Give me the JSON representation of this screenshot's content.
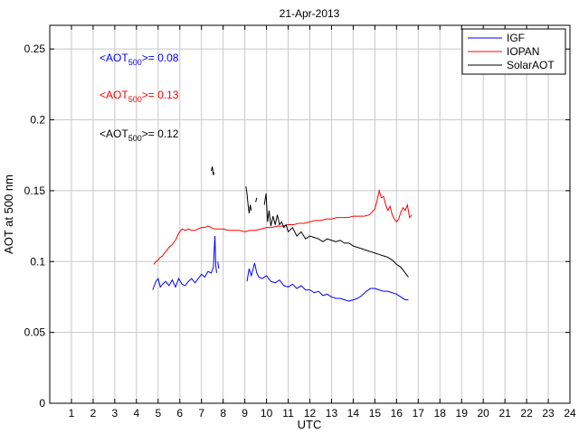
{
  "chart_data": {
    "type": "line",
    "title": "21-Apr-2013",
    "xlabel": "UTC",
    "ylabel": "AOT at 500 nm",
    "xlim": [
      0,
      24
    ],
    "ylim": [
      0,
      0.2667
    ],
    "xticks": [
      1,
      2,
      3,
      4,
      5,
      6,
      7,
      8,
      9,
      10,
      11,
      12,
      13,
      14,
      15,
      16,
      17,
      18,
      19,
      20,
      21,
      22,
      23,
      24
    ],
    "yticks": [
      0,
      0.05,
      0.1,
      0.15,
      0.2,
      0.25
    ],
    "ytick_labels": [
      "0",
      "0.05",
      "0.1",
      "0.15",
      "0.2",
      "0.25"
    ],
    "grid": true,
    "legend_position": "top-right",
    "series": [
      {
        "name": "IGF",
        "color": "#0000ff",
        "segments": [
          [
            [
              4.75,
              0.08
            ],
            [
              4.9,
              0.086
            ],
            [
              5.0,
              0.088
            ],
            [
              5.1,
              0.082
            ],
            [
              5.2,
              0.084
            ],
            [
              5.35,
              0.086
            ],
            [
              5.5,
              0.083
            ],
            [
              5.65,
              0.087
            ],
            [
              5.8,
              0.082
            ],
            [
              5.95,
              0.088
            ],
            [
              6.1,
              0.084
            ],
            [
              6.25,
              0.083
            ],
            [
              6.4,
              0.086
            ],
            [
              6.55,
              0.088
            ],
            [
              6.7,
              0.085
            ],
            [
              6.85,
              0.088
            ],
            [
              7.0,
              0.091
            ],
            [
              7.15,
              0.089
            ],
            [
              7.3,
              0.093
            ],
            [
              7.45,
              0.092
            ],
            [
              7.55,
              0.096
            ],
            [
              7.62,
              0.118
            ],
            [
              7.66,
              0.097
            ],
            [
              7.7,
              0.092
            ]
          ],
          [
            [
              7.75,
              0.1
            ],
            [
              7.8,
              0.095
            ]
          ],
          [
            [
              9.1,
              0.086
            ],
            [
              9.2,
              0.095
            ],
            [
              9.3,
              0.09
            ],
            [
              9.45,
              0.099
            ],
            [
              9.55,
              0.092
            ],
            [
              9.65,
              0.089
            ],
            [
              9.8,
              0.088
            ],
            [
              10.0,
              0.09
            ],
            [
              10.2,
              0.086
            ],
            [
              10.4,
              0.085
            ],
            [
              10.6,
              0.087
            ],
            [
              10.8,
              0.083
            ],
            [
              11.0,
              0.082
            ],
            [
              11.2,
              0.084
            ],
            [
              11.4,
              0.081
            ],
            [
              11.6,
              0.083
            ],
            [
              11.8,
              0.08
            ],
            [
              12.0,
              0.08
            ],
            [
              12.2,
              0.078
            ],
            [
              12.4,
              0.079
            ],
            [
              12.6,
              0.076
            ],
            [
              12.8,
              0.077
            ],
            [
              13.0,
              0.075
            ],
            [
              13.2,
              0.074
            ],
            [
              13.4,
              0.074
            ],
            [
              13.6,
              0.073
            ],
            [
              13.8,
              0.072
            ],
            [
              14.0,
              0.073
            ],
            [
              14.2,
              0.074
            ],
            [
              14.4,
              0.076
            ],
            [
              14.6,
              0.079
            ],
            [
              14.8,
              0.081
            ],
            [
              15.0,
              0.081
            ],
            [
              15.2,
              0.08
            ],
            [
              15.4,
              0.079
            ],
            [
              15.6,
              0.079
            ],
            [
              15.8,
              0.078
            ],
            [
              16.0,
              0.077
            ],
            [
              16.2,
              0.075
            ],
            [
              16.4,
              0.073
            ],
            [
              16.55,
              0.073
            ]
          ]
        ]
      },
      {
        "name": "IOPAN",
        "color": "#ff0000",
        "segments": [
          [
            [
              4.8,
              0.098
            ],
            [
              4.9,
              0.1
            ],
            [
              5.0,
              0.101
            ],
            [
              5.1,
              0.103
            ],
            [
              5.2,
              0.104
            ],
            [
              5.35,
              0.107
            ],
            [
              5.5,
              0.11
            ],
            [
              5.65,
              0.112
            ],
            [
              5.8,
              0.115
            ],
            [
              5.95,
              0.12
            ],
            [
              6.1,
              0.123
            ],
            [
              6.25,
              0.122
            ],
            [
              6.4,
              0.123
            ],
            [
              6.55,
              0.122
            ],
            [
              6.7,
              0.122
            ],
            [
              6.85,
              0.123
            ],
            [
              7.0,
              0.124
            ],
            [
              7.15,
              0.124
            ],
            [
              7.3,
              0.125
            ],
            [
              7.45,
              0.124
            ],
            [
              7.6,
              0.123
            ],
            [
              7.75,
              0.123
            ],
            [
              8.0,
              0.123
            ],
            [
              8.25,
              0.122
            ],
            [
              8.5,
              0.122
            ],
            [
              8.75,
              0.122
            ],
            [
              9.0,
              0.121
            ],
            [
              9.25,
              0.122
            ],
            [
              9.5,
              0.122
            ],
            [
              9.75,
              0.123
            ],
            [
              10.0,
              0.124
            ],
            [
              10.25,
              0.124
            ],
            [
              10.5,
              0.125
            ],
            [
              10.75,
              0.125
            ],
            [
              11.0,
              0.126
            ],
            [
              11.25,
              0.126
            ],
            [
              11.5,
              0.127
            ],
            [
              11.75,
              0.127
            ],
            [
              12.0,
              0.128
            ],
            [
              12.25,
              0.129
            ],
            [
              12.5,
              0.129
            ],
            [
              12.75,
              0.13
            ],
            [
              13.0,
              0.13
            ],
            [
              13.25,
              0.131
            ],
            [
              13.5,
              0.131
            ],
            [
              13.75,
              0.131
            ],
            [
              14.0,
              0.132
            ],
            [
              14.25,
              0.132
            ],
            [
              14.5,
              0.132
            ],
            [
              14.75,
              0.133
            ],
            [
              15.0,
              0.137
            ],
            [
              15.1,
              0.143
            ],
            [
              15.2,
              0.15
            ],
            [
              15.3,
              0.145
            ],
            [
              15.4,
              0.146
            ],
            [
              15.5,
              0.14
            ],
            [
              15.6,
              0.136
            ],
            [
              15.7,
              0.139
            ],
            [
              15.8,
              0.133
            ],
            [
              15.9,
              0.13
            ],
            [
              16.0,
              0.128
            ],
            [
              16.1,
              0.13
            ],
            [
              16.2,
              0.135
            ],
            [
              16.3,
              0.138
            ],
            [
              16.4,
              0.136
            ],
            [
              16.5,
              0.14
            ],
            [
              16.6,
              0.131
            ],
            [
              16.7,
              0.133
            ]
          ]
        ]
      },
      {
        "name": "SolarAOT",
        "color": "#000000",
        "segments": [
          [
            [
              7.45,
              0.164
            ],
            [
              7.5,
              0.167
            ],
            [
              7.55,
              0.161
            ],
            [
              7.58,
              0.163
            ]
          ],
          [
            [
              9.05,
              0.153
            ],
            [
              9.1,
              0.148
            ],
            [
              9.15,
              0.14
            ],
            [
              9.2,
              0.134
            ],
            [
              9.25,
              0.14
            ],
            [
              9.3,
              0.136
            ]
          ],
          [
            [
              9.5,
              0.142
            ],
            [
              9.55,
              0.145
            ]
          ],
          [
            [
              9.9,
              0.14
            ],
            [
              9.98,
              0.148
            ],
            [
              10.05,
              0.128
            ],
            [
              10.12,
              0.136
            ],
            [
              10.2,
              0.125
            ],
            [
              10.3,
              0.132
            ],
            [
              10.4,
              0.126
            ],
            [
              10.5,
              0.133
            ],
            [
              10.6,
              0.126
            ],
            [
              10.7,
              0.128
            ],
            [
              10.8,
              0.124
            ],
            [
              10.9,
              0.126
            ],
            [
              11.0,
              0.121
            ],
            [
              11.2,
              0.124
            ],
            [
              11.4,
              0.118
            ],
            [
              11.6,
              0.121
            ],
            [
              11.8,
              0.116
            ],
            [
              12.0,
              0.118
            ],
            [
              12.2,
              0.117
            ],
            [
              12.4,
              0.116
            ],
            [
              12.6,
              0.114
            ],
            [
              12.8,
              0.116
            ],
            [
              13.0,
              0.115
            ],
            [
              13.2,
              0.114
            ],
            [
              13.4,
              0.115
            ],
            [
              13.6,
              0.113
            ],
            [
              13.8,
              0.113
            ],
            [
              14.0,
              0.111
            ],
            [
              14.2,
              0.11
            ],
            [
              14.4,
              0.109
            ],
            [
              14.6,
              0.108
            ],
            [
              14.8,
              0.107
            ],
            [
              15.0,
              0.106
            ],
            [
              15.2,
              0.105
            ],
            [
              15.4,
              0.104
            ],
            [
              15.6,
              0.103
            ],
            [
              15.8,
              0.101
            ],
            [
              16.0,
              0.098
            ],
            [
              16.2,
              0.096
            ],
            [
              16.4,
              0.092
            ],
            [
              16.55,
              0.089
            ]
          ]
        ]
      }
    ],
    "annotations": [
      {
        "prefix": "<AOT",
        "sub": "500",
        "suffix": ">= 0.08",
        "color": "#0000ff"
      },
      {
        "prefix": "<AOT",
        "sub": "500",
        "suffix": ">= 0.13",
        "color": "#ff0000"
      },
      {
        "prefix": "<AOT",
        "sub": "500",
        "suffix": ">= 0.12",
        "color": "#000000"
      }
    ]
  }
}
